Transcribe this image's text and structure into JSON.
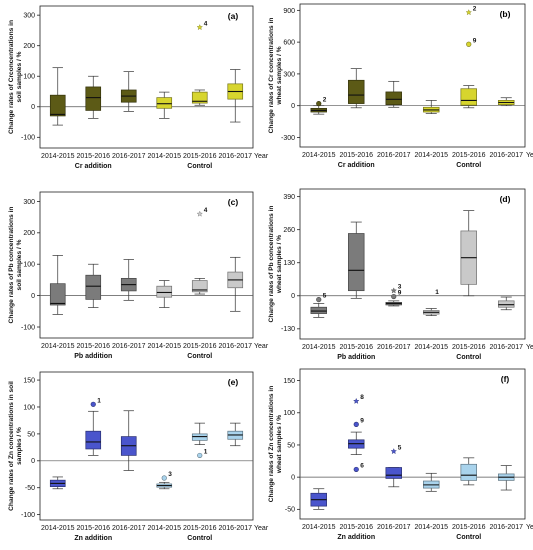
{
  "chart_data": [
    {
      "type": "box",
      "panel_label": "(a)",
      "ylabel": [
        "Change rates of Crconcentrations in",
        "soil samples / %"
      ],
      "yticks": [
        -100,
        0,
        100,
        200,
        300
      ],
      "ylim": [
        -135,
        330
      ],
      "categories": [
        "2014-2015",
        "2015-2016",
        "2016-2017",
        "2014-2015",
        "2015-2016",
        "2016-2017"
      ],
      "axis_end_label": "Year",
      "groups": [
        {
          "name": "Cr addition",
          "span": [
            0,
            2
          ]
        },
        {
          "name": "Control",
          "span": [
            3,
            5
          ]
        }
      ],
      "colors": [
        "#5c5a16",
        "#5c5a16",
        "#5c5a16",
        "#d7d52e",
        "#d7d52e",
        "#d7d52e"
      ],
      "boxes": [
        {
          "min": -60,
          "q1": -30,
          "median": -25,
          "q3": 38,
          "max": 128
        },
        {
          "min": -38,
          "q1": -12,
          "median": 30,
          "q3": 65,
          "max": 100
        },
        {
          "min": -15,
          "q1": 15,
          "median": 35,
          "q3": 55,
          "max": 115
        },
        {
          "min": -38,
          "q1": -5,
          "median": 10,
          "q3": 30,
          "max": 48
        },
        {
          "min": 5,
          "q1": 12,
          "median": 18,
          "q3": 48,
          "max": 55
        },
        {
          "min": -50,
          "q1": 25,
          "median": 50,
          "q3": 75,
          "max": 122
        }
      ],
      "outliers": [
        {
          "category": 4,
          "value": 260,
          "label": "4",
          "shape": "star"
        }
      ]
    },
    {
      "type": "box",
      "panel_label": "(b)",
      "ylabel": [
        "Change rates of Cr concentrations in",
        "wheat samples / %"
      ],
      "yticks": [
        -300,
        0,
        300,
        600,
        900
      ],
      "ylim": [
        -390,
        960
      ],
      "categories": [
        "2014-2015",
        "2015-2016",
        "2016-2017",
        "2014-2015",
        "2015-2016",
        "2016-2017"
      ],
      "axis_end_label": "Year",
      "groups": [
        {
          "name": "Cr addition",
          "span": [
            0,
            2
          ]
        },
        {
          "name": "Control",
          "span": [
            3,
            5
          ]
        }
      ],
      "colors": [
        "#5c5a16",
        "#5c5a16",
        "#5c5a16",
        "#d7d52e",
        "#d7d52e",
        "#d7d52e"
      ],
      "boxes": [
        {
          "min": -80,
          "q1": -60,
          "median": -45,
          "q3": -25,
          "max": 0
        },
        {
          "min": -20,
          "q1": 20,
          "median": 100,
          "q3": 240,
          "max": 350
        },
        {
          "min": -15,
          "q1": 10,
          "median": 60,
          "q3": 130,
          "max": 230
        },
        {
          "min": -75,
          "q1": -60,
          "median": -40,
          "q3": -15,
          "max": 50
        },
        {
          "min": -20,
          "q1": 5,
          "median": 50,
          "q3": 160,
          "max": 190
        },
        {
          "min": 0,
          "q1": 10,
          "median": 30,
          "q3": 50,
          "max": 75
        }
      ],
      "outliers": [
        {
          "category": 0,
          "value": 20,
          "label": "2",
          "shape": "circle"
        },
        {
          "category": 4,
          "value": 880,
          "label": "2",
          "shape": "star"
        },
        {
          "category": 4,
          "value": 580,
          "label": "9",
          "shape": "circle"
        }
      ]
    },
    {
      "type": "box",
      "panel_label": "(c)",
      "ylabel": [
        "Change rates of Pb concentrations in",
        "soil samples / %"
      ],
      "yticks": [
        -100,
        0,
        100,
        200,
        300
      ],
      "ylim": [
        -135,
        330
      ],
      "categories": [
        "2014-2015",
        "2015-2016",
        "2016-2017",
        "2014-2015",
        "2015-2016",
        "2016-2017"
      ],
      "axis_end_label": "Year",
      "groups": [
        {
          "name": "Pb addition",
          "span": [
            0,
            2
          ]
        },
        {
          "name": "Control",
          "span": [
            3,
            5
          ]
        }
      ],
      "colors": [
        "#7b7b7b",
        "#7b7b7b",
        "#7b7b7b",
        "#c9c9c9",
        "#c9c9c9",
        "#c9c9c9"
      ],
      "boxes": [
        {
          "min": -60,
          "q1": -30,
          "median": -25,
          "q3": 38,
          "max": 128
        },
        {
          "min": -38,
          "q1": -12,
          "median": 30,
          "q3": 65,
          "max": 100
        },
        {
          "min": -15,
          "q1": 15,
          "median": 35,
          "q3": 55,
          "max": 115
        },
        {
          "min": -38,
          "q1": -5,
          "median": 10,
          "q3": 30,
          "max": 48
        },
        {
          "min": 5,
          "q1": 12,
          "median": 18,
          "q3": 48,
          "max": 55
        },
        {
          "min": -50,
          "q1": 25,
          "median": 50,
          "q3": 75,
          "max": 122
        }
      ],
      "outliers": [
        {
          "category": 4,
          "value": 260,
          "label": "4",
          "shape": "star"
        }
      ]
    },
    {
      "type": "box",
      "panel_label": "(d)",
      "ylabel": [
        "Change rates of  Pb concentrations in",
        "wheat samples / %"
      ],
      "yticks": [
        -130,
        0,
        130,
        260,
        390
      ],
      "ylim": [
        -170,
        420
      ],
      "categories": [
        "2014-2015",
        "2015-2016",
        "2016-2017",
        "2014-2015",
        "2015-2016",
        "2016-2017"
      ],
      "axis_end_label": "Year",
      "groups": [
        {
          "name": "Pb addition",
          "span": [
            0,
            2
          ]
        },
        {
          "name": "Control",
          "span": [
            3,
            5
          ]
        }
      ],
      "colors": [
        "#7b7b7b",
        "#7b7b7b",
        "#7b7b7b",
        "#c9c9c9",
        "#c9c9c9",
        "#c9c9c9"
      ],
      "boxes": [
        {
          "min": -85,
          "q1": -70,
          "median": -60,
          "q3": -45,
          "max": -30
        },
        {
          "min": -10,
          "q1": 20,
          "median": 100,
          "q3": 245,
          "max": 290
        },
        {
          "min": -40,
          "q1": -36,
          "median": -30,
          "q3": -26,
          "max": -20
        },
        {
          "min": -78,
          "q1": -72,
          "median": -65,
          "q3": -58,
          "max": -50
        },
        {
          "min": 0,
          "q1": 45,
          "median": 150,
          "q3": 255,
          "max": 335
        },
        {
          "min": -55,
          "q1": -45,
          "median": -35,
          "q3": -20,
          "max": -5
        }
      ],
      "outliers": [
        {
          "category": 0,
          "value": -15,
          "label": "5",
          "shape": "circle"
        },
        {
          "category": 2,
          "value": 20,
          "label": "3",
          "shape": "star"
        },
        {
          "category": 2,
          "value": -3,
          "label": "9",
          "shape": "circle"
        },
        {
          "category": 3,
          "value": 0,
          "label": "1",
          "shape": "none"
        }
      ]
    },
    {
      "type": "box",
      "panel_label": "(e)",
      "ylabel": [
        "Change rates of Zn  concentrations in soil",
        "samples / %"
      ],
      "yticks": [
        -100,
        -50,
        0,
        50,
        100,
        150
      ],
      "ylim": [
        -110,
        165
      ],
      "categories": [
        "2014-2015",
        "2015-2016",
        "2016-2017",
        "2014-2015",
        "2015-2016",
        "2016-2017"
      ],
      "axis_end_label": "Year",
      "groups": [
        {
          "name": "Zn addition",
          "span": [
            0,
            2
          ]
        },
        {
          "name": "Control",
          "span": [
            3,
            5
          ]
        }
      ],
      "colors": [
        "#4a55cc",
        "#4a55cc",
        "#4a55cc",
        "#a9d3ec",
        "#a9d3ec",
        "#a9d3ec"
      ],
      "boxes": [
        {
          "min": -52,
          "q1": -48,
          "median": -42,
          "q3": -36,
          "max": -30
        },
        {
          "min": 10,
          "q1": 22,
          "median": 35,
          "q3": 55,
          "max": 92
        },
        {
          "min": -18,
          "q1": 10,
          "median": 28,
          "q3": 45,
          "max": 93
        },
        {
          "min": -52,
          "q1": -49,
          "median": -46,
          "q3": -43,
          "max": -40
        },
        {
          "min": 30,
          "q1": 38,
          "median": 45,
          "q3": 50,
          "max": 70
        },
        {
          "min": 28,
          "q1": 40,
          "median": 48,
          "q3": 55,
          "max": 70
        }
      ],
      "outliers": [
        {
          "category": 1,
          "value": 105,
          "label": "1",
          "shape": "circle"
        },
        {
          "category": 3,
          "value": -32,
          "label": "3",
          "shape": "circle"
        },
        {
          "category": 4,
          "value": 10,
          "label": "1",
          "shape": "circle"
        }
      ]
    },
    {
      "type": "box",
      "panel_label": "(f)",
      "ylabel": [
        "Change rates of Zn concentrations in",
        "wheat samples / %"
      ],
      "yticks": [
        -50,
        0,
        50,
        100,
        150
      ],
      "ylim": [
        -65,
        168
      ],
      "categories": [
        "2014-2015",
        "2015-2016",
        "2016-2017",
        "2014-2015",
        "2015-2016",
        "2016-2017"
      ],
      "axis_end_label": "Year",
      "groups": [
        {
          "name": "Zn addition",
          "span": [
            0,
            2
          ]
        },
        {
          "name": "Control",
          "span": [
            3,
            5
          ]
        }
      ],
      "colors": [
        "#4a55cc",
        "#4a55cc",
        "#4a55cc",
        "#a9d3ec",
        "#a9d3ec",
        "#a9d3ec"
      ],
      "boxes": [
        {
          "min": -50,
          "q1": -45,
          "median": -35,
          "q3": -25,
          "max": -18
        },
        {
          "min": 35,
          "q1": 45,
          "median": 52,
          "q3": 58,
          "max": 70
        },
        {
          "min": -15,
          "q1": -2,
          "median": 3,
          "q3": 15,
          "max": 15
        },
        {
          "min": -22,
          "q1": -17,
          "median": -12,
          "q3": -6,
          "max": 6
        },
        {
          "min": -12,
          "q1": -5,
          "median": 3,
          "q3": 20,
          "max": 30
        },
        {
          "min": -20,
          "q1": -5,
          "median": 0,
          "q3": 5,
          "max": 18
        }
      ],
      "outliers": [
        {
          "category": 1,
          "value": 118,
          "label": "8",
          "shape": "star"
        },
        {
          "category": 1,
          "value": 82,
          "label": "9",
          "shape": "circle"
        },
        {
          "category": 1,
          "value": 12,
          "label": "6",
          "shape": "circle"
        },
        {
          "category": 2,
          "value": 40,
          "label": "5",
          "shape": "star"
        }
      ]
    }
  ]
}
